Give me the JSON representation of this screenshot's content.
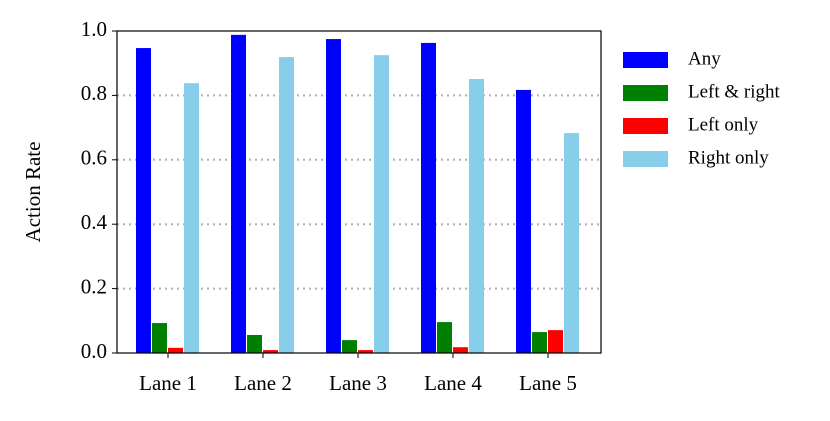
{
  "chart_data": {
    "type": "bar",
    "y_label": "Action Rate",
    "categories": [
      "Lane 1",
      "Lane 2",
      "Lane 3",
      "Lane 4",
      "Lane 5"
    ],
    "series": [
      {
        "name": "Any",
        "color": "#0000ff",
        "values": [
          0.947,
          0.988,
          0.975,
          0.963,
          0.817
        ]
      },
      {
        "name": "Left & right",
        "color": "#008000",
        "values": [
          0.093,
          0.056,
          0.04,
          0.096,
          0.065
        ]
      },
      {
        "name": "Left only",
        "color": "#ff0000",
        "values": [
          0.016,
          0.009,
          0.009,
          0.018,
          0.071
        ]
      },
      {
        "name": "Right only",
        "color": "#87ceeb",
        "values": [
          0.838,
          0.919,
          0.925,
          0.851,
          0.683
        ]
      }
    ],
    "ylim": [
      0,
      1
    ],
    "yticks": [
      {
        "value": 0,
        "label": "0.0"
      },
      {
        "value": 0.2,
        "label": "0.2"
      },
      {
        "value": 0.4,
        "label": "0.4"
      },
      {
        "value": 0.6,
        "label": "0.6"
      },
      {
        "value": 0.8,
        "label": "0.8"
      },
      {
        "value": 1,
        "label": "1.0"
      }
    ],
    "grid": true,
    "legend": "outside-right"
  }
}
